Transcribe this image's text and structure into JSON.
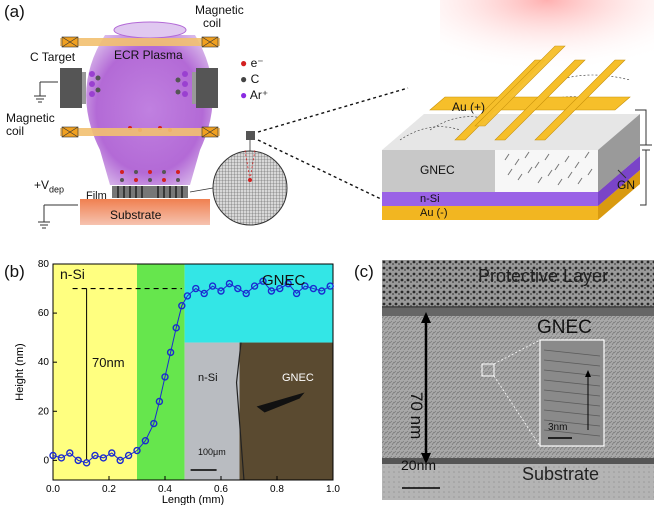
{
  "panel_a": {
    "tag": "(a)",
    "magnetic_coil_top": [
      "Magnetic",
      "coil"
    ],
    "magnetic_coil_left": [
      "Magnetic",
      "coil"
    ],
    "c_target": "C Target",
    "ecr_plasma": "ECR Plasma",
    "legend": [
      {
        "symbol": "e-",
        "label": "e⁻",
        "color": "#d32020"
      },
      {
        "symbol": "C",
        "label": "C",
        "color": "#444444"
      },
      {
        "symbol": "Ar+",
        "label": "Ar⁺",
        "color": "#8a2be2"
      }
    ],
    "v_dep": "+V",
    "v_dep_sub": "dep",
    "film": "Film",
    "substrate": "Substrate",
    "device": {
      "au_plus": "Au (+)",
      "gnec": "GNEC",
      "n_si": "n-Si",
      "au_minus": "Au (-)",
      "gn": "GN"
    },
    "colors": {
      "plasma": "#b36ad6",
      "gold": "#f2b621",
      "substrate": "#f26a3a",
      "purple_layer": "#9a62e6",
      "gray_block": "#c8c8c8"
    }
  },
  "panel_b": {
    "tag": "(b)",
    "region_nsi": "n-Si",
    "region_gnec": "GNEC",
    "step_label": "70nm",
    "inset_nsi": "n-Si",
    "inset_gnec": "GNEC",
    "inset_scale": "100μm",
    "colors": {
      "nsi": "#ffff80",
      "transition": "#66e64d",
      "gnec": "#33e6e6",
      "line": "#1b2bd0"
    }
  },
  "chart_data": {
    "type": "scatter",
    "xlabel": "Length (mm)",
    "ylabel": "Height (nm)",
    "xlim": [
      0.0,
      1.0
    ],
    "ylim": [
      -8,
      80
    ],
    "xticks": [
      "0.0",
      "0.2",
      "0.4",
      "0.6",
      "0.8",
      "1.0"
    ],
    "yticks": [
      "0",
      "20",
      "40",
      "60",
      "80"
    ],
    "reference_line_y": 70,
    "x": [
      0.0,
      0.03,
      0.06,
      0.09,
      0.12,
      0.15,
      0.18,
      0.21,
      0.24,
      0.27,
      0.3,
      0.33,
      0.36,
      0.38,
      0.4,
      0.42,
      0.44,
      0.46,
      0.48,
      0.51,
      0.54,
      0.57,
      0.6,
      0.63,
      0.66,
      0.69,
      0.72,
      0.75,
      0.78,
      0.81,
      0.84,
      0.87,
      0.9,
      0.93,
      0.96,
      0.99
    ],
    "y": [
      2,
      1,
      3,
      0,
      -1,
      2,
      1,
      3,
      0,
      2,
      4,
      8,
      15,
      24,
      34,
      44,
      54,
      63,
      67,
      70,
      68,
      71,
      69,
      72,
      70,
      68,
      71,
      73,
      69,
      70,
      72,
      68,
      71,
      70,
      69,
      71
    ]
  },
  "panel_c": {
    "tag": "(c)",
    "protective_layer": "Protective Layer",
    "gnec": "GNEC",
    "thickness": "70 nm",
    "inset_scale": "3nm",
    "scale_bar": "20nm",
    "substrate": "Substrate"
  }
}
